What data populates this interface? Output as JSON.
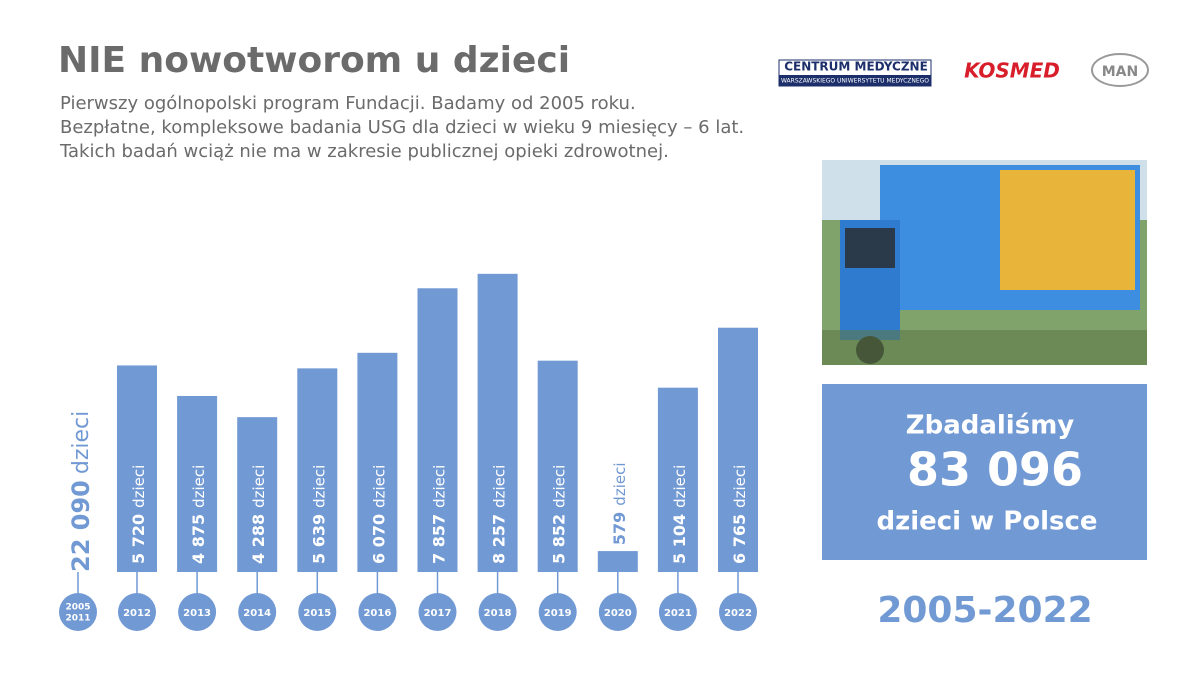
{
  "header": {
    "title": "NIE nowotworom u dzieci",
    "lines": [
      "Pierwszy ogólnopolski program Fundacji. Badamy od 2005 roku.",
      "Bezpłatne, kompleksowe badania USG dla dzieci w wieku 9 miesięcy – 6 lat.",
      "Takich badań wciąż nie ma w zakresie publicznej opieki zdrowotnej."
    ]
  },
  "logos": {
    "cm_top": "CENTRUM MEDYCZNE",
    "cm_bottom": "WARSZAWSKIEGO UNIWERSYTETU MEDYCZNEGO",
    "kosmed": "KOSMED",
    "man": "MAN"
  },
  "summary": {
    "line1": "Zbadaliśmy",
    "total": "83 096",
    "line2": "dzieci w Polsce",
    "period": "2005-2022"
  },
  "first_period": {
    "label": [
      "2005",
      "2011"
    ],
    "value_label": "22 090"
  },
  "chart_data": {
    "type": "bar",
    "unit": "dzieci",
    "color": "#7199d4",
    "categories": [
      "2012",
      "2013",
      "2014",
      "2015",
      "2016",
      "2017",
      "2018",
      "2019",
      "2020",
      "2021",
      "2022"
    ],
    "values": [
      5720,
      4875,
      4288,
      5639,
      6070,
      7857,
      8257,
      5852,
      579,
      5104,
      6765
    ],
    "value_labels": [
      "5 720",
      "4 875",
      "4 288",
      "5 639",
      "6 070",
      "7 857",
      "8 257",
      "5 852",
      "579",
      "5 104",
      "6 765"
    ],
    "ylim": [
      0,
      9000
    ],
    "yticks": []
  }
}
